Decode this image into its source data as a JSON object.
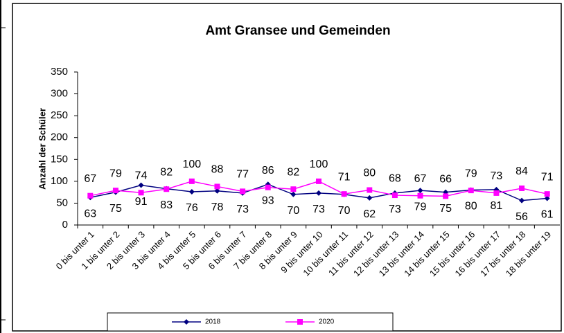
{
  "chart_data": {
    "type": "line",
    "title": "Amt Gransee und Gemeinden",
    "y_label": "Anzahl der Schüler",
    "categories": [
      "0 bis unter 1",
      "1 bis unter 2",
      "2 bis unter 3",
      "3 bis unter 4",
      "4 bis unter 5",
      "5 bis unter 6",
      "6 bis unter 7",
      "7 bis unter 8",
      "8 bis unter 9",
      "9 bis unter 10",
      "10 bis unter 11",
      "11 bis unter 12",
      "12 bis unter 13",
      "13 bis unter 14",
      "14 bis unter 15",
      "15 bis unter 16",
      "16 bis unter 17",
      "17 bis unter 18",
      "18 bis unter 19"
    ],
    "series": [
      {
        "name": "2018",
        "color": "#000080",
        "marker": "diamond",
        "values": [
          63,
          75,
          91,
          83,
          76,
          78,
          73,
          93,
          70,
          73,
          70,
          62,
          73,
          79,
          75,
          80,
          81,
          56,
          61
        ]
      },
      {
        "name": "2020",
        "color": "#ff00ff",
        "marker": "square",
        "values": [
          67,
          79,
          74,
          82,
          100,
          88,
          77,
          86,
          82,
          100,
          71,
          80,
          68,
          67,
          66,
          79,
          73,
          84,
          71
        ]
      }
    ],
    "ylim": [
      0,
      350
    ],
    "yticks": [
      0,
      50,
      100,
      150,
      200,
      250,
      300,
      350
    ],
    "grid": false,
    "legend": "bottom"
  }
}
